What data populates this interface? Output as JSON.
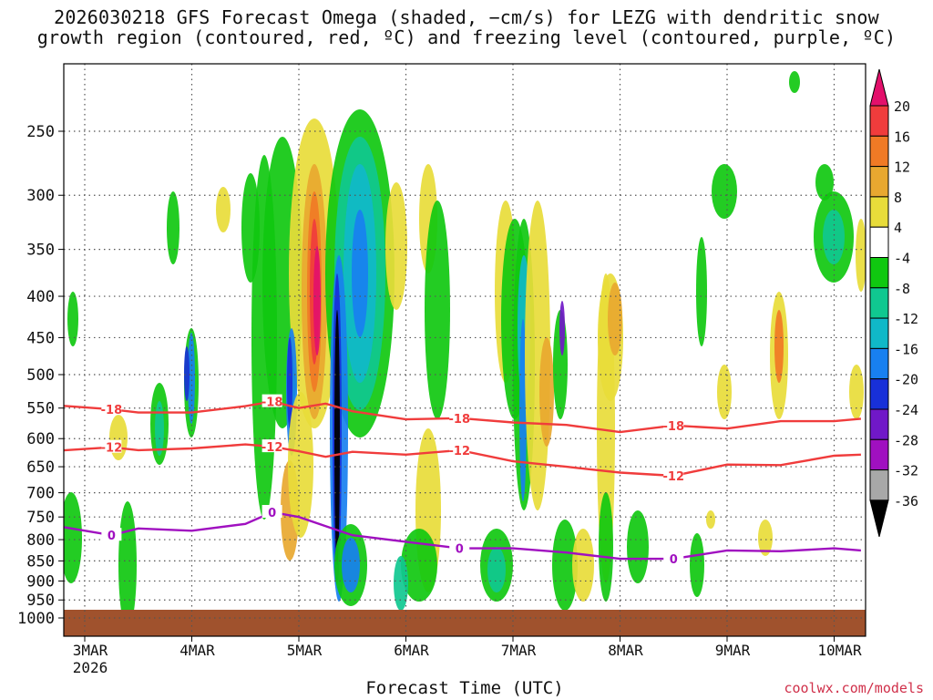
{
  "title": {
    "line1": "2026030218 GFS Forecast Omega (shaded, −cm/s) for LEZG with dendritic snow",
    "line2": "growth region (contoured, red, ºC) and freezing level (contoured, purple, ºC)"
  },
  "x_axis": {
    "title": "Forecast Time (UTC)",
    "ticks": [
      "3MAR",
      "4MAR",
      "5MAR",
      "6MAR",
      "7MAR",
      "8MAR",
      "9MAR",
      "10MAR"
    ],
    "year_label": "2026"
  },
  "y_axis": {
    "ticks": [
      250,
      300,
      350,
      400,
      450,
      500,
      550,
      600,
      650,
      700,
      750,
      800,
      850,
      900,
      950,
      1000
    ]
  },
  "colorbar": {
    "labels": [
      "20",
      "16",
      "12",
      "8",
      "4",
      "-4",
      "-8",
      "-12",
      "-16",
      "-20",
      "-24",
      "-28",
      "-32",
      "-36"
    ],
    "colors": [
      "#e3106b",
      "#f03c3c",
      "#f07a25",
      "#e8a830",
      "#e8dc3a",
      "#ffffff",
      "#10c810",
      "#10c890",
      "#10b8c8",
      "#1880f0",
      "#1830d8",
      "#7018c8",
      "#a010c0",
      "#a8a8a8",
      "#000000"
    ]
  },
  "credit": "coolwx.com/models",
  "chart_data": {
    "type": "heatmap",
    "title": "2026030218 GFS Forecast Omega (shaded, −cm/s) for LEZG with dendritic snow growth region (contoured, red, ºC) and freezing level (contoured, purple, ºC)",
    "xlabel": "Forecast Time (UTC)",
    "ylabel": "",
    "x_range_days": [
      "2026-03-02T18",
      "2026-03-10T06"
    ],
    "y_range_hpa": [
      1000,
      200
    ],
    "y_log_scale": true,
    "grid": true,
    "contours": [
      {
        "label": "-18",
        "color": "#f03c3c",
        "x": [
          "2026-03-02T18",
          "2026-03-03T06",
          "2026-03-03T12",
          "2026-03-04T00",
          "2026-03-04T12",
          "2026-03-04T18",
          "2026-03-05T00",
          "2026-03-05T06",
          "2026-03-05T12",
          "2026-03-06T00",
          "2026-03-06T12",
          "2026-03-07T00",
          "2026-03-07T12",
          "2026-03-08T00",
          "2026-03-08T12",
          "2026-03-09T00",
          "2026-03-09T12",
          "2026-03-10T00",
          "2026-03-10T06"
        ],
        "y": [
          546,
          552,
          557,
          557,
          547,
          540,
          550,
          543,
          555,
          568,
          566,
          573,
          577,
          589,
          578,
          583,
          571,
          571,
          567
        ]
      },
      {
        "label": "-12",
        "color": "#f03c3c",
        "x": [
          "2026-03-02T18",
          "2026-03-03T06",
          "2026-03-03T12",
          "2026-03-04T00",
          "2026-03-04T12",
          "2026-03-04T18",
          "2026-03-05T00",
          "2026-03-05T06",
          "2026-03-05T12",
          "2026-03-06T00",
          "2026-03-06T12",
          "2026-03-07T00",
          "2026-03-07T12",
          "2026-03-08T00",
          "2026-03-08T12",
          "2026-03-09T00",
          "2026-03-09T12",
          "2026-03-10T00",
          "2026-03-10T06"
        ],
        "y": [
          621,
          615,
          620,
          617,
          610,
          614,
          622,
          632,
          623,
          628,
          620,
          640,
          650,
          661,
          667,
          646,
          647,
          630,
          628
        ]
      },
      {
        "label": "0",
        "color": "#a010c0",
        "x": [
          "2026-03-02T18",
          "2026-03-03T06",
          "2026-03-03T12",
          "2026-03-04T00",
          "2026-03-04T12",
          "2026-03-04T18",
          "2026-03-05T00",
          "2026-03-05T06",
          "2026-03-05T12",
          "2026-03-06T00",
          "2026-03-06T12",
          "2026-03-07T00",
          "2026-03-07T12",
          "2026-03-08T00",
          "2026-03-08T12",
          "2026-03-09T00",
          "2026-03-09T12",
          "2026-03-10T00",
          "2026-03-10T06"
        ],
        "y": [
          770,
          790,
          775,
          780,
          765,
          740,
          750,
          770,
          790,
          805,
          820,
          820,
          830,
          845,
          845,
          825,
          827,
          820,
          825
        ]
      }
    ],
    "colorbar_levels": [
      20,
      16,
      12,
      8,
      4,
      -4,
      -8,
      -12,
      -16,
      -20,
      -24,
      -28,
      -32,
      -36
    ]
  }
}
